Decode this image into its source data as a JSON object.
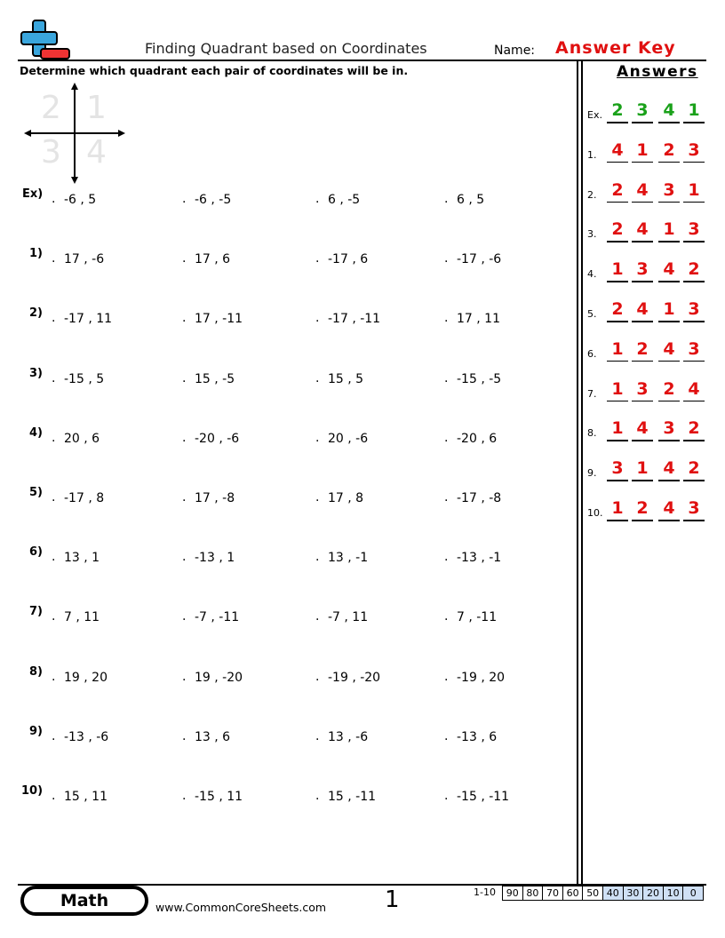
{
  "header": {
    "title": "Finding Quadrant based on Coordinates",
    "name_label": "Name:",
    "name_value": "Answer Key"
  },
  "instructions": "Determine which quadrant each pair of coordinates will be in.",
  "diagram": {
    "quadrants": [
      "2",
      "1",
      "3",
      "4"
    ]
  },
  "marker": ".",
  "problems": [
    {
      "label": "Ex)",
      "items": [
        "-6 , 5",
        "-6 , -5",
        "6 , -5",
        "6 , 5"
      ]
    },
    {
      "label": "1)",
      "items": [
        "17 , -6",
        "17 , 6",
        "-17 , 6",
        "-17 , -6"
      ]
    },
    {
      "label": "2)",
      "items": [
        "-17 , 11",
        "17 , -11",
        "-17 , -11",
        "17 , 11"
      ]
    },
    {
      "label": "3)",
      "items": [
        "-15 , 5",
        "15 , -5",
        "15 , 5",
        "-15 , -5"
      ]
    },
    {
      "label": "4)",
      "items": [
        "20 , 6",
        "-20 , -6",
        "20 , -6",
        "-20 , 6"
      ]
    },
    {
      "label": "5)",
      "items": [
        "-17 , 8",
        "17 , -8",
        "17 , 8",
        "-17 , -8"
      ]
    },
    {
      "label": "6)",
      "items": [
        "13 , 1",
        "-13 , 1",
        "13 , -1",
        "-13 , -1"
      ]
    },
    {
      "label": "7)",
      "items": [
        "7 , 11",
        "-7 , -11",
        "-7 , 11",
        "7 , -11"
      ]
    },
    {
      "label": "8)",
      "items": [
        "19 , 20",
        "19 , -20",
        "-19 , -20",
        "-19 , 20"
      ]
    },
    {
      "label": "9)",
      "items": [
        "-13 , -6",
        "13 , 6",
        "13 , -6",
        "-13 , 6"
      ]
    },
    {
      "label": "10)",
      "items": [
        "15 , 11",
        "-15 , 11",
        "15 , -11",
        "-15 , -11"
      ]
    }
  ],
  "answers": {
    "title": "Answers",
    "rows": [
      {
        "label": "Ex.",
        "values": [
          "2",
          "3",
          "4",
          "1"
        ]
      },
      {
        "label": "1.",
        "values": [
          "4",
          "1",
          "2",
          "3"
        ]
      },
      {
        "label": "2.",
        "values": [
          "2",
          "4",
          "3",
          "1"
        ]
      },
      {
        "label": "3.",
        "values": [
          "2",
          "4",
          "1",
          "3"
        ]
      },
      {
        "label": "4.",
        "values": [
          "1",
          "3",
          "4",
          "2"
        ]
      },
      {
        "label": "5.",
        "values": [
          "2",
          "4",
          "1",
          "3"
        ]
      },
      {
        "label": "6.",
        "values": [
          "1",
          "2",
          "4",
          "3"
        ]
      },
      {
        "label": "7.",
        "values": [
          "1",
          "3",
          "2",
          "4"
        ]
      },
      {
        "label": "8.",
        "values": [
          "1",
          "4",
          "3",
          "2"
        ]
      },
      {
        "label": "9.",
        "values": [
          "3",
          "1",
          "4",
          "2"
        ]
      },
      {
        "label": "10.",
        "values": [
          "1",
          "2",
          "4",
          "3"
        ]
      }
    ]
  },
  "footer": {
    "subject": "Math",
    "website": "www.CommonCoreSheets.com",
    "page": "1",
    "score_label": "1-10",
    "scores": [
      "90",
      "80",
      "70",
      "60",
      "50",
      "40",
      "30",
      "20",
      "10",
      "0"
    ]
  }
}
